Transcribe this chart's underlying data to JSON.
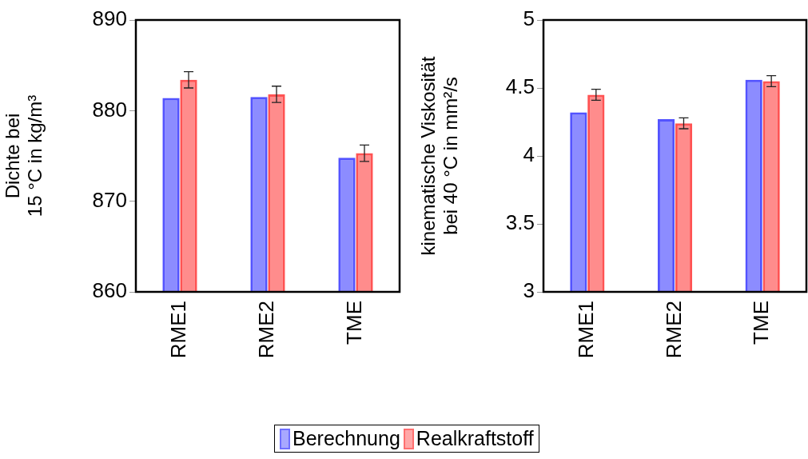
{
  "chart_data": [
    {
      "type": "bar",
      "ylabel": "Dichte bei\n15 °C in kg/m³",
      "categories": [
        "RME1",
        "RME2",
        "TME"
      ],
      "ylim": [
        860,
        890
      ],
      "yticks": [
        860,
        870,
        880,
        890
      ],
      "grid": false,
      "legend": "bottom",
      "series": [
        {
          "name": "Berechnung",
          "color": "#4040ff",
          "values": [
            881.4,
            881.5,
            874.8
          ]
        },
        {
          "name": "Realkraftstoff",
          "color": "#ff4040",
          "values": [
            883.4,
            881.8,
            875.3
          ],
          "errors": [
            0.9,
            0.9,
            0.9
          ]
        }
      ]
    },
    {
      "type": "bar",
      "ylabel": "kinematische Viskosität\nbei 40 °C in mm²/s",
      "categories": [
        "RME1",
        "RME2",
        "TME"
      ],
      "ylim": [
        3,
        5
      ],
      "yticks": [
        3,
        3.5,
        4,
        4.5,
        5
      ],
      "grid": false,
      "series": [
        {
          "color": "#4040ff",
          "values": [
            4.32,
            4.27,
            4.56
          ]
        },
        {
          "color": "#ff4040",
          "values": [
            4.45,
            4.24,
            4.55
          ],
          "errors": [
            0.04,
            0.04,
            0.04
          ]
        }
      ]
    }
  ]
}
